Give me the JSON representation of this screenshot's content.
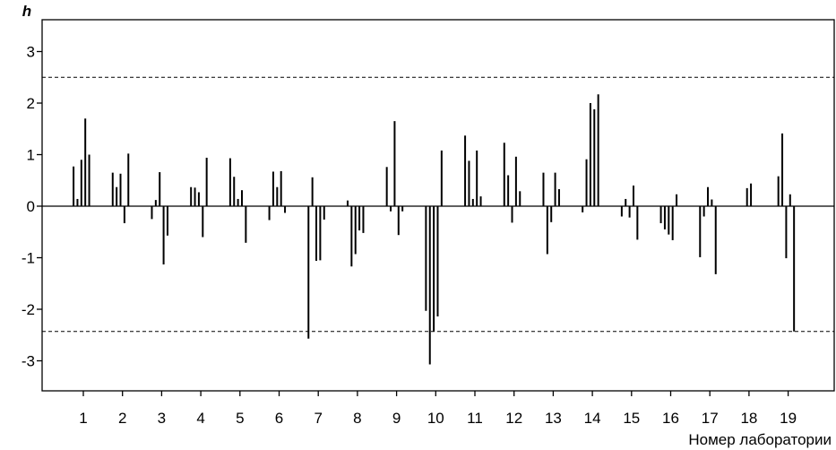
{
  "chart_data": {
    "type": "bar",
    "ylabel": "h",
    "xlabel": "Номер лаборатории",
    "ylim": [
      -3.5,
      3.5
    ],
    "yticks": [
      -3,
      -2,
      -1,
      0,
      1,
      2,
      3
    ],
    "ytick_labels": [
      "-3",
      "-2",
      "-1",
      "0",
      "1",
      "2",
      "3"
    ],
    "categories": [
      "1",
      "2",
      "3",
      "4",
      "5",
      "6",
      "7",
      "8",
      "9",
      "10",
      "11",
      "12",
      "13",
      "14",
      "15",
      "16",
      "17",
      "18",
      "19"
    ],
    "reference_lines": [
      2.5,
      -2.43
    ],
    "grid": false,
    "legend": "none",
    "bar_offsets": [
      -0.25,
      -0.15,
      -0.05,
      0.05,
      0.15,
      0.25
    ],
    "groups": [
      {
        "lab": "1",
        "values": [
          0.77,
          0.14,
          0.9,
          1.7,
          1.0
        ]
      },
      {
        "lab": "2",
        "values": [
          0.65,
          0.37,
          0.63,
          -0.33,
          1.02
        ]
      },
      {
        "lab": "3",
        "values": [
          -0.25,
          0.12,
          0.66,
          -1.13,
          -0.57
        ]
      },
      {
        "lab": "4",
        "values": [
          0.37,
          0.36,
          0.27,
          -0.6,
          0.94
        ]
      },
      {
        "lab": "5",
        "values": [
          0.93,
          0.57,
          0.14,
          0.31,
          -0.71
        ]
      },
      {
        "lab": "6",
        "values": [
          -0.27,
          0.67,
          0.37,
          0.68,
          -0.13
        ]
      },
      {
        "lab": "7",
        "values": [
          -2.57,
          0.56,
          -1.06,
          -1.05,
          -0.26
        ]
      },
      {
        "lab": "8",
        "values": [
          0.11,
          -1.17,
          -0.93,
          -0.47,
          -0.52
        ]
      },
      {
        "lab": "9",
        "values": [
          0.76,
          -0.1,
          1.65,
          -0.56,
          -0.1
        ]
      },
      {
        "lab": "10",
        "values": [
          -2.03,
          -3.07,
          -2.43,
          -2.14,
          1.08
        ]
      },
      {
        "lab": "11",
        "values": [
          1.37,
          0.88,
          0.14,
          1.08,
          0.19
        ]
      },
      {
        "lab": "12",
        "values": [
          1.23,
          0.6,
          -0.32,
          0.96,
          0.29
        ]
      },
      {
        "lab": "13",
        "values": [
          0.65,
          -0.93,
          -0.31,
          0.65,
          0.33
        ]
      },
      {
        "lab": "14",
        "values": [
          -0.12,
          0.91,
          2.0,
          1.88,
          2.17
        ]
      },
      {
        "lab": "15",
        "values": [
          -0.2,
          0.14,
          -0.22,
          0.4,
          -0.65
        ]
      },
      {
        "lab": "16",
        "values": [
          -0.33,
          -0.45,
          -0.55,
          -0.66,
          0.23
        ]
      },
      {
        "lab": "17",
        "values": [
          -0.99,
          -0.2,
          0.37,
          0.13,
          -1.32
        ]
      },
      {
        "lab": "18",
        "values": [
          0.35,
          0.44
        ]
      },
      {
        "lab": "19",
        "values": [
          0.58,
          1.41,
          -1.01,
          0.23,
          -2.43
        ]
      }
    ]
  }
}
